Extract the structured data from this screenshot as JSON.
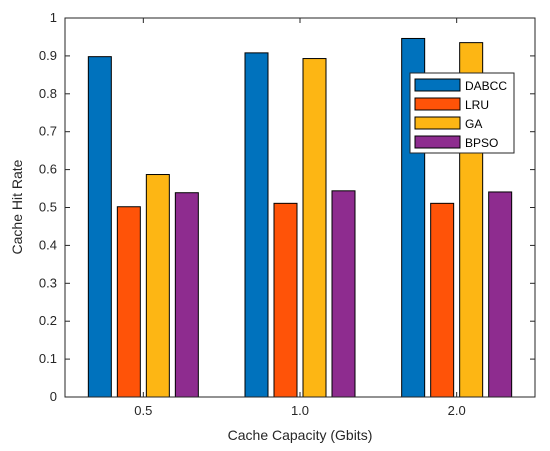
{
  "chart_data": {
    "type": "bar",
    "categories": [
      "0.5",
      "1.0",
      "2.0"
    ],
    "series": [
      {
        "name": "DABCC",
        "color": "#0072BD",
        "values": [
          0.898,
          0.908,
          0.946
        ]
      },
      {
        "name": "LRU",
        "color": "#FF5308",
        "values": [
          0.502,
          0.511,
          0.511
        ]
      },
      {
        "name": "GA",
        "color": "#FDB614",
        "values": [
          0.587,
          0.893,
          0.935
        ]
      },
      {
        "name": "BPSO",
        "color": "#8E2C8F",
        "values": [
          0.539,
          0.544,
          0.541
        ]
      }
    ],
    "title": "",
    "xlabel": "Cache Capacity (Gbits)",
    "ylabel": "Cache Hit Rate",
    "ylim": [
      0,
      1
    ],
    "yticks": [
      "0",
      "0.1",
      "0.2",
      "0.3",
      "0.4",
      "0.5",
      "0.6",
      "0.7",
      "0.8",
      "0.9",
      "1"
    ],
    "grid": false,
    "legend_position": "top-right"
  }
}
